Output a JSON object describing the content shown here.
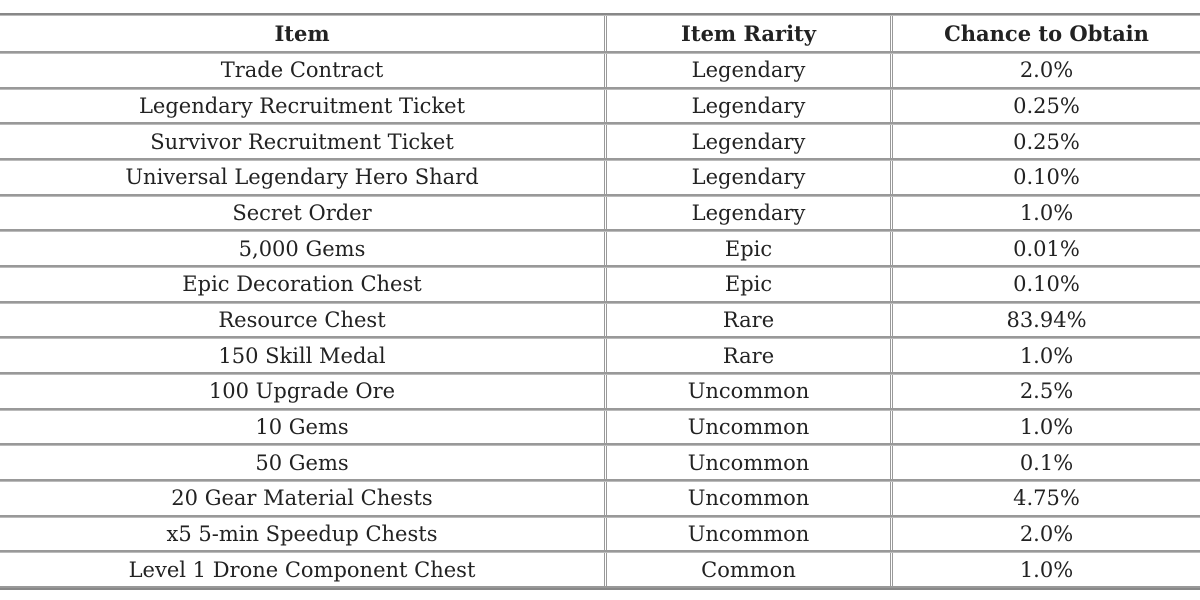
{
  "headers": [
    "Item",
    "Item Rarity",
    "Chance to Obtain"
  ],
  "rows": [
    [
      "Trade Contract",
      "Legendary",
      "2.0%"
    ],
    [
      "Legendary Recruitment Ticket",
      "Legendary",
      "0.25%"
    ],
    [
      "Survivor Recruitment Ticket",
      "Legendary",
      "0.25%"
    ],
    [
      "Universal Legendary Hero Shard",
      "Legendary",
      "0.10%"
    ],
    [
      "Secret Order",
      "Legendary",
      "1.0%"
    ],
    [
      "5,000 Gems",
      "Epic",
      "0.01%"
    ],
    [
      "Epic Decoration Chest",
      "Epic",
      "0.10%"
    ],
    [
      "Resource Chest",
      "Rare",
      "83.94%"
    ],
    [
      "150 Skill Medal",
      "Rare",
      "1.0%"
    ],
    [
      "100 Upgrade Ore",
      "Uncommon",
      "2.5%"
    ],
    [
      "10 Gems",
      "Uncommon",
      "1.0%"
    ],
    [
      "50 Gems",
      "Uncommon",
      "0.1%"
    ],
    [
      "20 Gear Material Chests",
      "Uncommon",
      "4.75%"
    ],
    [
      "x5 5-min Speedup Chests",
      "Uncommon",
      "2.0%"
    ],
    [
      "Level 1 Drone Component Chest",
      "Common",
      "1.0%"
    ]
  ]
}
